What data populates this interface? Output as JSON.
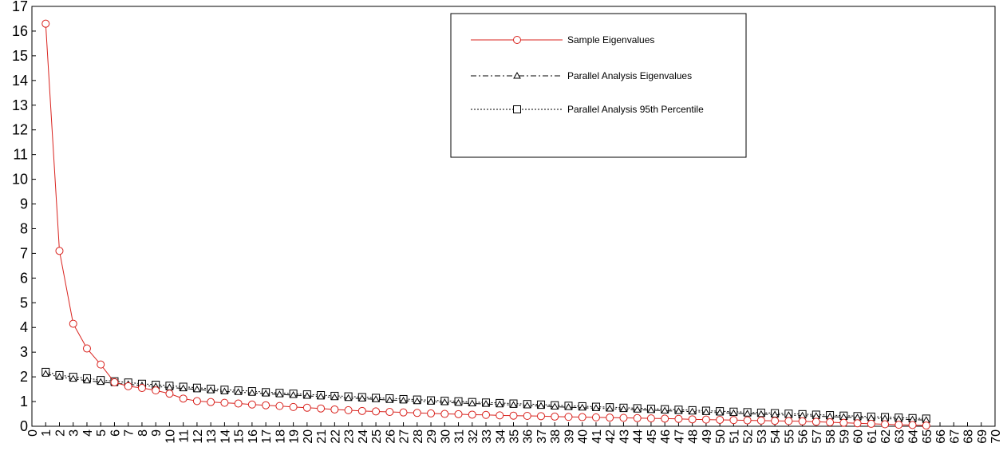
{
  "chart_data": {
    "type": "line",
    "title": "",
    "xlabel": "",
    "ylabel": "",
    "xlim": [
      0,
      70
    ],
    "ylim": [
      0,
      17
    ],
    "grid": false,
    "legend_position": "top-center",
    "x_ticks": [
      0,
      1,
      2,
      3,
      4,
      5,
      6,
      7,
      8,
      9,
      10,
      11,
      12,
      13,
      14,
      15,
      16,
      17,
      18,
      19,
      20,
      21,
      22,
      23,
      24,
      25,
      26,
      27,
      28,
      29,
      30,
      31,
      32,
      33,
      34,
      35,
      36,
      37,
      38,
      39,
      40,
      41,
      42,
      43,
      44,
      45,
      46,
      47,
      48,
      49,
      50,
      51,
      52,
      53,
      54,
      55,
      56,
      57,
      58,
      59,
      60,
      61,
      62,
      63,
      64,
      65,
      66,
      67,
      68,
      69,
      70
    ],
    "y_ticks": [
      0,
      1,
      2,
      3,
      4,
      5,
      6,
      7,
      8,
      9,
      10,
      11,
      12,
      13,
      14,
      15,
      16,
      17
    ],
    "x": [
      1,
      2,
      3,
      4,
      5,
      6,
      7,
      8,
      9,
      10,
      11,
      12,
      13,
      14,
      15,
      16,
      17,
      18,
      19,
      20,
      21,
      22,
      23,
      24,
      25,
      26,
      27,
      28,
      29,
      30,
      31,
      32,
      33,
      34,
      35,
      36,
      37,
      38,
      39,
      40,
      41,
      42,
      43,
      44,
      45,
      46,
      47,
      48,
      49,
      50,
      51,
      52,
      53,
      54,
      55,
      56,
      57,
      58,
      59,
      60,
      61,
      62,
      63,
      64,
      65
    ],
    "series": [
      {
        "name": "Sample Eigenvalues",
        "color": "#d9231e",
        "line": "solid",
        "marker": "circle",
        "values": [
          16.3,
          7.1,
          4.15,
          3.15,
          2.5,
          1.78,
          1.62,
          1.55,
          1.45,
          1.32,
          1.12,
          1.02,
          0.98,
          0.95,
          0.92,
          0.88,
          0.85,
          0.82,
          0.78,
          0.75,
          0.72,
          0.68,
          0.65,
          0.62,
          0.6,
          0.58,
          0.56,
          0.54,
          0.52,
          0.5,
          0.49,
          0.47,
          0.46,
          0.44,
          0.43,
          0.42,
          0.41,
          0.39,
          0.38,
          0.37,
          0.36,
          0.35,
          0.34,
          0.33,
          0.32,
          0.31,
          0.3,
          0.28,
          0.27,
          0.26,
          0.25,
          0.24,
          0.23,
          0.22,
          0.21,
          0.2,
          0.18,
          0.16,
          0.14,
          0.12,
          0.1,
          0.08,
          0.06,
          0.05,
          0.03
        ]
      },
      {
        "name": "Parallel Analysis Eigenvalues",
        "color": "#000000",
        "line": "dash-dot",
        "marker": "triangle",
        "values": [
          2.12,
          2.0,
          1.92,
          1.85,
          1.79,
          1.74,
          1.7,
          1.65,
          1.61,
          1.57,
          1.53,
          1.49,
          1.45,
          1.41,
          1.38,
          1.35,
          1.32,
          1.29,
          1.26,
          1.23,
          1.2,
          1.17,
          1.14,
          1.12,
          1.09,
          1.06,
          1.04,
          1.01,
          0.99,
          0.97,
          0.94,
          0.92,
          0.9,
          0.88,
          0.86,
          0.84,
          0.82,
          0.79,
          0.77,
          0.75,
          0.73,
          0.71,
          0.69,
          0.67,
          0.65,
          0.63,
          0.61,
          0.59,
          0.57,
          0.55,
          0.53,
          0.51,
          0.49,
          0.47,
          0.45,
          0.43,
          0.41,
          0.39,
          0.37,
          0.35,
          0.33,
          0.31,
          0.29,
          0.27,
          0.25
        ]
      },
      {
        "name": "Parallel Analysis 95th Percentile",
        "color": "#000000",
        "line": "dotted",
        "marker": "square",
        "values": [
          2.2,
          2.07,
          2.0,
          1.94,
          1.87,
          1.82,
          1.77,
          1.72,
          1.68,
          1.64,
          1.6,
          1.56,
          1.52,
          1.48,
          1.45,
          1.42,
          1.38,
          1.35,
          1.32,
          1.29,
          1.26,
          1.23,
          1.21,
          1.18,
          1.15,
          1.13,
          1.1,
          1.08,
          1.05,
          1.03,
          1.01,
          0.98,
          0.96,
          0.94,
          0.92,
          0.9,
          0.88,
          0.85,
          0.83,
          0.81,
          0.79,
          0.77,
          0.75,
          0.73,
          0.71,
          0.69,
          0.67,
          0.65,
          0.63,
          0.61,
          0.59,
          0.57,
          0.55,
          0.53,
          0.51,
          0.49,
          0.47,
          0.45,
          0.43,
          0.41,
          0.39,
          0.37,
          0.35,
          0.33,
          0.31
        ]
      }
    ]
  }
}
